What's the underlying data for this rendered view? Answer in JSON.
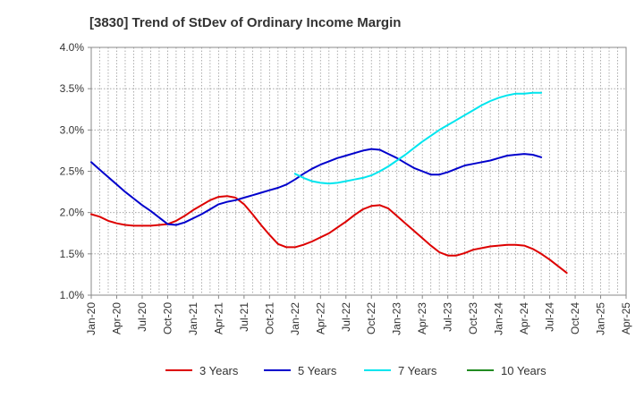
{
  "chart_data": {
    "type": "line",
    "title": "[3830]  Trend of StDev of Ordinary Income Margin",
    "xlabel": "",
    "ylabel": "",
    "x_ticks": [
      "Jan-20",
      "Apr-20",
      "Jul-20",
      "Oct-20",
      "Jan-21",
      "Apr-21",
      "Jul-21",
      "Oct-21",
      "Jan-22",
      "Apr-22",
      "Jul-22",
      "Oct-22",
      "Jan-23",
      "Apr-23",
      "Jul-23",
      "Oct-23",
      "Jan-24",
      "Apr-24",
      "Jul-24",
      "Oct-24",
      "Jan-25",
      "Apr-25"
    ],
    "y_ticks": [
      "1.0%",
      "1.5%",
      "2.0%",
      "2.5%",
      "3.0%",
      "3.5%",
      "4.0%"
    ],
    "ylim": [
      1.0,
      4.0
    ],
    "grid": true,
    "legend_position": "bottom",
    "series": [
      {
        "name": "3 Years",
        "color": "#dd0000",
        "points": [
          [
            "Jan-20",
            1.98
          ],
          [
            "Feb-20",
            1.95
          ],
          [
            "Mar-20",
            1.9
          ],
          [
            "Apr-20",
            1.87
          ],
          [
            "May-20",
            1.85
          ],
          [
            "Jun-20",
            1.84
          ],
          [
            "Jul-20",
            1.84
          ],
          [
            "Aug-20",
            1.84
          ],
          [
            "Sep-20",
            1.85
          ],
          [
            "Oct-20",
            1.86
          ],
          [
            "Nov-20",
            1.9
          ],
          [
            "Dec-20",
            1.96
          ],
          [
            "Jan-21",
            2.03
          ],
          [
            "Feb-21",
            2.09
          ],
          [
            "Mar-21",
            2.15
          ],
          [
            "Apr-21",
            2.19
          ],
          [
            "May-21",
            2.2
          ],
          [
            "Jun-21",
            2.18
          ],
          [
            "Jul-21",
            2.1
          ],
          [
            "Aug-21",
            1.98
          ],
          [
            "Sep-21",
            1.85
          ],
          [
            "Oct-21",
            1.73
          ],
          [
            "Nov-21",
            1.62
          ],
          [
            "Dec-21",
            1.58
          ],
          [
            "Jan-22",
            1.58
          ],
          [
            "Feb-22",
            1.61
          ],
          [
            "Mar-22",
            1.65
          ],
          [
            "Apr-22",
            1.7
          ],
          [
            "May-22",
            1.75
          ],
          [
            "Jun-22",
            1.82
          ],
          [
            "Jul-22",
            1.89
          ],
          [
            "Aug-22",
            1.97
          ],
          [
            "Sep-22",
            2.04
          ],
          [
            "Oct-22",
            2.08
          ],
          [
            "Nov-22",
            2.09
          ],
          [
            "Dec-22",
            2.05
          ],
          [
            "Jan-23",
            1.96
          ],
          [
            "Feb-23",
            1.87
          ],
          [
            "Mar-23",
            1.78
          ],
          [
            "Apr-23",
            1.69
          ],
          [
            "May-23",
            1.6
          ],
          [
            "Jun-23",
            1.52
          ],
          [
            "Jul-23",
            1.48
          ],
          [
            "Aug-23",
            1.48
          ],
          [
            "Sep-23",
            1.51
          ],
          [
            "Oct-23",
            1.55
          ],
          [
            "Nov-23",
            1.57
          ],
          [
            "Dec-23",
            1.59
          ],
          [
            "Jan-24",
            1.6
          ],
          [
            "Feb-24",
            1.61
          ],
          [
            "Mar-24",
            1.61
          ],
          [
            "Apr-24",
            1.6
          ],
          [
            "May-24",
            1.56
          ],
          [
            "Jun-24",
            1.5
          ],
          [
            "Jul-24",
            1.43
          ],
          [
            "Aug-24",
            1.35
          ],
          [
            "Sep-24",
            1.27
          ]
        ]
      },
      {
        "name": "5 Years",
        "color": "#0000cc",
        "points": [
          [
            "Jan-20",
            2.61
          ],
          [
            "Feb-20",
            2.52
          ],
          [
            "Mar-20",
            2.43
          ],
          [
            "Apr-20",
            2.34
          ],
          [
            "May-20",
            2.25
          ],
          [
            "Jun-20",
            2.17
          ],
          [
            "Jul-20",
            2.09
          ],
          [
            "Aug-20",
            2.02
          ],
          [
            "Sep-20",
            1.94
          ],
          [
            "Oct-20",
            1.86
          ],
          [
            "Nov-20",
            1.85
          ],
          [
            "Dec-20",
            1.88
          ],
          [
            "Jan-21",
            1.93
          ],
          [
            "Feb-21",
            1.98
          ],
          [
            "Mar-21",
            2.04
          ],
          [
            "Apr-21",
            2.1
          ],
          [
            "May-21",
            2.13
          ],
          [
            "Jun-21",
            2.15
          ],
          [
            "Jul-21",
            2.18
          ],
          [
            "Aug-21",
            2.21
          ],
          [
            "Sep-21",
            2.24
          ],
          [
            "Oct-21",
            2.27
          ],
          [
            "Nov-21",
            2.3
          ],
          [
            "Dec-21",
            2.34
          ],
          [
            "Jan-22",
            2.4
          ],
          [
            "Feb-22",
            2.47
          ],
          [
            "Mar-22",
            2.53
          ],
          [
            "Apr-22",
            2.58
          ],
          [
            "May-22",
            2.62
          ],
          [
            "Jun-22",
            2.66
          ],
          [
            "Jul-22",
            2.69
          ],
          [
            "Aug-22",
            2.72
          ],
          [
            "Sep-22",
            2.75
          ],
          [
            "Oct-22",
            2.77
          ],
          [
            "Nov-22",
            2.76
          ],
          [
            "Dec-22",
            2.71
          ],
          [
            "Jan-23",
            2.66
          ],
          [
            "Feb-23",
            2.6
          ],
          [
            "Mar-23",
            2.54
          ],
          [
            "Apr-23",
            2.5
          ],
          [
            "May-23",
            2.46
          ],
          [
            "Jun-23",
            2.46
          ],
          [
            "Jul-23",
            2.49
          ],
          [
            "Aug-23",
            2.53
          ],
          [
            "Sep-23",
            2.57
          ],
          [
            "Oct-23",
            2.59
          ],
          [
            "Nov-23",
            2.61
          ],
          [
            "Dec-23",
            2.63
          ],
          [
            "Jan-24",
            2.66
          ],
          [
            "Feb-24",
            2.69
          ],
          [
            "Mar-24",
            2.7
          ],
          [
            "Apr-24",
            2.71
          ],
          [
            "May-24",
            2.7
          ],
          [
            "Jun-24",
            2.67
          ]
        ]
      },
      {
        "name": "7 Years",
        "color": "#00e5ee",
        "points": [
          [
            "Jan-22",
            2.47
          ],
          [
            "Feb-22",
            2.42
          ],
          [
            "Mar-22",
            2.38
          ],
          [
            "Apr-22",
            2.36
          ],
          [
            "May-22",
            2.35
          ],
          [
            "Jun-22",
            2.36
          ],
          [
            "Jul-22",
            2.38
          ],
          [
            "Aug-22",
            2.4
          ],
          [
            "Sep-22",
            2.42
          ],
          [
            "Oct-22",
            2.45
          ],
          [
            "Nov-22",
            2.5
          ],
          [
            "Dec-22",
            2.56
          ],
          [
            "Jan-23",
            2.63
          ],
          [
            "Feb-23",
            2.7
          ],
          [
            "Mar-23",
            2.78
          ],
          [
            "Apr-23",
            2.86
          ],
          [
            "May-23",
            2.93
          ],
          [
            "Jun-23",
            3.0
          ],
          [
            "Jul-23",
            3.06
          ],
          [
            "Aug-23",
            3.12
          ],
          [
            "Sep-23",
            3.18
          ],
          [
            "Oct-23",
            3.24
          ],
          [
            "Nov-23",
            3.3
          ],
          [
            "Dec-23",
            3.35
          ],
          [
            "Jan-24",
            3.39
          ],
          [
            "Feb-24",
            3.42
          ],
          [
            "Mar-24",
            3.44
          ],
          [
            "Apr-24",
            3.44
          ],
          [
            "May-24",
            3.45
          ],
          [
            "Jun-24",
            3.45
          ]
        ]
      },
      {
        "name": "10 Years",
        "color": "#228b22",
        "points": []
      }
    ]
  }
}
